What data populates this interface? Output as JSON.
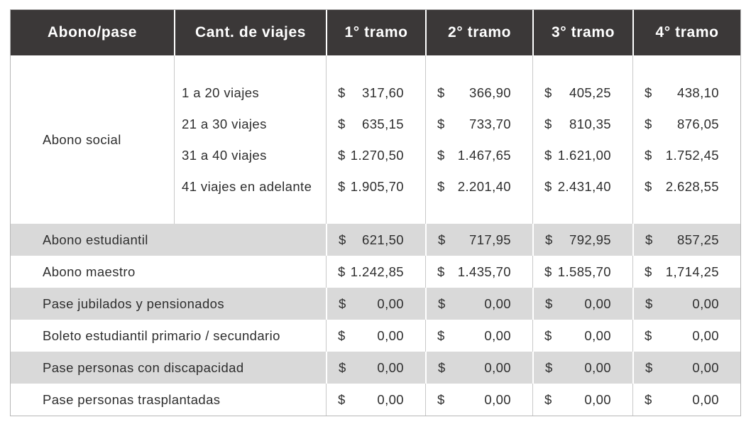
{
  "table": {
    "currency_symbol": "$",
    "headers": [
      {
        "label": "Abono/pase"
      },
      {
        "label": "Cant. de viajes"
      },
      {
        "label": "1° tramo"
      },
      {
        "label": "2° tramo"
      },
      {
        "label": "3° tramo"
      },
      {
        "label": "4° tramo"
      }
    ],
    "abono_social": {
      "label": "Abono social",
      "tiers": [
        {
          "viajes": "1 a 20 viajes",
          "t1": "317,60",
          "t2": "366,90",
          "t3": "405,25",
          "t4": "438,10"
        },
        {
          "viajes": "21 a 30 viajes",
          "t1": "635,15",
          "t2": "733,70",
          "t3": "810,35",
          "t4": "876,05"
        },
        {
          "viajes": "31 a 40 viajes",
          "t1": "1.270,50",
          "t2": "1.467,65",
          "t3": "1.621,00",
          "t4": "1.752,45"
        },
        {
          "viajes": "41 viajes en adelante",
          "t1": "1.905,70",
          "t2": "2.201,40",
          "t3": "2.431,40",
          "t4": "2.628,55"
        }
      ]
    },
    "rows": [
      {
        "label": "Abono estudiantil",
        "t1": "621,50",
        "t2": "717,95",
        "t3": "792,95",
        "t4": "857,25",
        "shaded": true
      },
      {
        "label": "Abono maestro",
        "t1": "1.242,85",
        "t2": "1.435,70",
        "t3": "1.585,70",
        "t4": "1,714,25",
        "shaded": false
      },
      {
        "label": "Pase jubilados y pensionados",
        "t1": "0,00",
        "t2": "0,00",
        "t3": "0,00",
        "t4": "0,00",
        "shaded": true
      },
      {
        "label": "Boleto estudiantil primario / secundario",
        "t1": "0,00",
        "t2": "0,00",
        "t3": "0,00",
        "t4": "0,00",
        "shaded": false
      },
      {
        "label": "Pase personas con discapacidad",
        "t1": "0,00",
        "t2": "0,00",
        "t3": "0,00",
        "t4": "0,00",
        "shaded": true
      },
      {
        "label": "Pase personas trasplantadas",
        "t1": "0,00",
        "t2": "0,00",
        "t3": "0,00",
        "t4": "0,00",
        "shaded": false
      }
    ],
    "colors": {
      "header_bg": "#3b3838",
      "header_text": "#ffffff",
      "shaded_row_bg": "#d9d9d9",
      "text": "#2e2e2e",
      "divider": "#c9c9c9",
      "outer_border": "#b7b7b7"
    }
  }
}
